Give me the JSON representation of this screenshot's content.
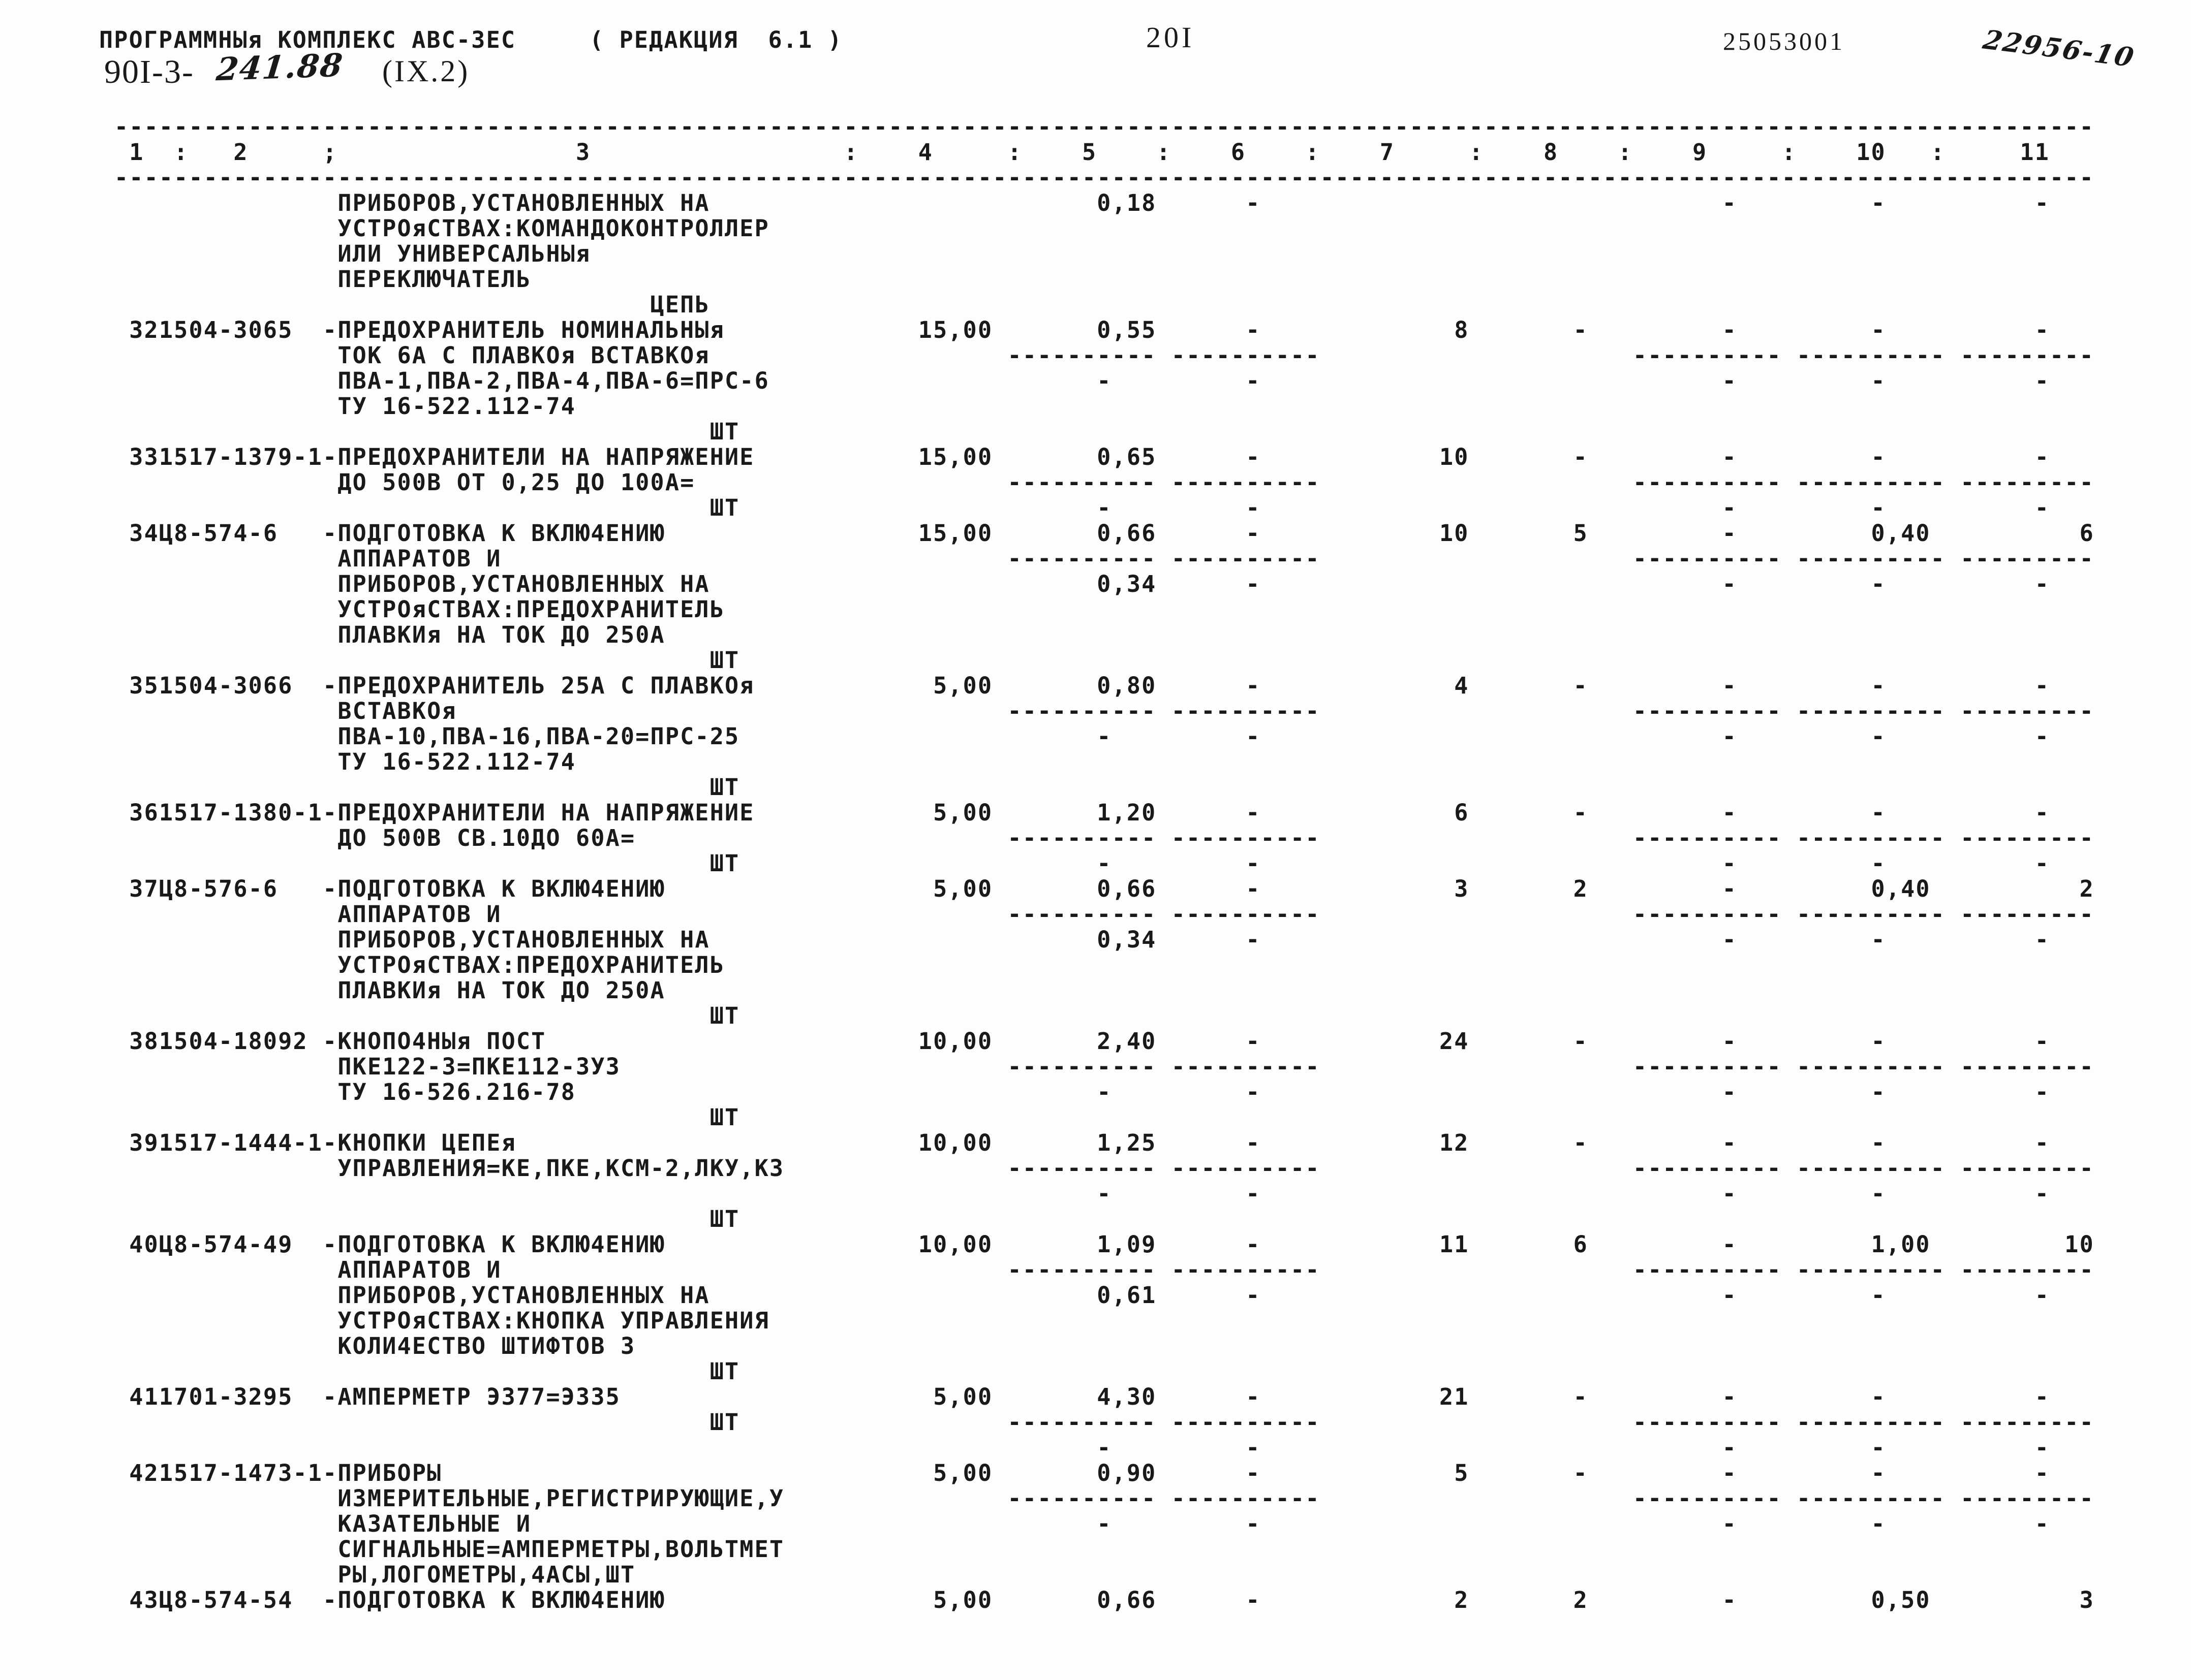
{
  "header": {
    "program_title": "ПРОГРАММНЫя КОМПЛЕКС АВС-3ЕС",
    "edition": "( РЕДАКЦИЯ  6.1 )",
    "page_number": "20I",
    "right_code": "25053001",
    "handwritten_top_right": "22956-10",
    "doc_number_prefix": "90I-3-",
    "doc_number_handwritten": "241.88",
    "doc_section": "(IX.2)"
  },
  "ruler": {
    "labels": [
      "1",
      ":",
      "2",
      ";",
      "3",
      ":",
      "4",
      ":",
      "5",
      ":",
      "6",
      ":",
      "7",
      ":",
      "8",
      ":",
      "9",
      ":",
      "10",
      ":",
      "11"
    ]
  },
  "carryover": {
    "description_lines": [
      "ПРИБОРОВ,УСТАНОВЛЕННЫХ НА",
      "УСТРОяСТВАХ:КОМАНДОКОНТРОЛЛЕР",
      "ИЛИ УНИВЕРСАЛЬНЫя",
      "ПЕРЕКЛЮЧАТЕЛЬ"
    ],
    "unit": "ЦЕПЬ",
    "values": {
      "c5": "0,18",
      "c6": "-",
      "c9": "-",
      "c10": "-",
      "c11": "-"
    }
  },
  "items": [
    {
      "num": "32",
      "code": "1504-3065",
      "desc": [
        "ПРЕДОХРАНИТЕЛЬ НОМИНАЛЬНЫя",
        "ТОК 6А С ПЛАВКОя ВСТАВКОя",
        "ПВА-1,ПВА-2,ПВА-4,ПВА-6=ПРС-6",
        "ТУ 16-522.112-74"
      ],
      "unit": "ШТ",
      "unit_row": 4,
      "has_separators": true,
      "values": {
        "c4": "15,00",
        "c5": "0,55",
        "c6": "-",
        "c7": "8",
        "c8": "-",
        "c9": "-",
        "c10": "-",
        "c11": "-"
      },
      "second": {
        "c5": "-",
        "c6": "-",
        "c9": "-",
        "c10": "-",
        "c11": "-"
      }
    },
    {
      "num": "33",
      "code": "1517-1379-1",
      "desc": [
        "ПРЕДОХРАНИТЕЛИ НА НАПРЯЖЕНИЕ",
        "ДО 500В ОТ 0,25 ДО 100А="
      ],
      "unit": "ШТ",
      "unit_row": 2,
      "has_separators": true,
      "values": {
        "c4": "15,00",
        "c5": "0,65",
        "c6": "-",
        "c7": "10",
        "c8": "-",
        "c9": "-",
        "c10": "-",
        "c11": "-"
      },
      "second": {
        "c5": "-",
        "c6": "-",
        "c9": "-",
        "c10": "-",
        "c11": "-"
      }
    },
    {
      "num": "34",
      "code": "Ц8-574-6",
      "desc": [
        "ПОДГОТОВКА К ВКЛЮ4ЕНИЮ",
        "АППАРАТОВ И",
        "ПРИБОРОВ,УСТАНОВЛЕННЫХ НА",
        "УСТРОяСТВАХ:ПРЕДОХРАНИТЕЛЬ",
        "ПЛАВКИя НА ТОК ДО 250А"
      ],
      "unit": "ШТ",
      "unit_row": 5,
      "has_separators": true,
      "values": {
        "c4": "15,00",
        "c5": "0,66",
        "c6": "-",
        "c7": "10",
        "c8": "5",
        "c9": "-",
        "c10": "0,40",
        "c11": "6"
      },
      "second": {
        "c5": "0,34",
        "c6": "-",
        "c9": "-",
        "c10": "-",
        "c11": "-"
      }
    },
    {
      "num": "35",
      "code": "1504-3066",
      "desc": [
        "ПРЕДОХРАНИТЕЛЬ 25А С ПЛАВКОя",
        "ВСТАВКОя",
        "ПВА-10,ПВА-16,ПВА-20=ПРС-25",
        "ТУ 16-522.112-74"
      ],
      "unit": "ШТ",
      "unit_row": 4,
      "has_separators": true,
      "values": {
        "c4": "5,00",
        "c5": "0,80",
        "c6": "-",
        "c7": "4",
        "c8": "-",
        "c9": "-",
        "c10": "-",
        "c11": "-"
      },
      "second": {
        "c5": "-",
        "c6": "-",
        "c9": "-",
        "c10": "-",
        "c11": "-"
      }
    },
    {
      "num": "36",
      "code": "1517-1380-1",
      "desc": [
        "ПРЕДОХРАНИТЕЛИ НА НАПРЯЖЕНИЕ",
        "ДО 500В СВ.10ДО 60А="
      ],
      "unit": "ШТ",
      "unit_row": 2,
      "has_separators": true,
      "values": {
        "c4": "5,00",
        "c5": "1,20",
        "c6": "-",
        "c7": "6",
        "c8": "-",
        "c9": "-",
        "c10": "-",
        "c11": "-"
      },
      "second": {
        "c5": "-",
        "c6": "-",
        "c9": "-",
        "c10": "-",
        "c11": "-"
      }
    },
    {
      "num": "37",
      "code": "Ц8-576-6",
      "desc": [
        "ПОДГОТОВКА К ВКЛЮ4ЕНИЮ",
        "АППАРАТОВ И",
        "ПРИБОРОВ,УСТАНОВЛЕННЫХ НА",
        "УСТРОяСТВАХ:ПРЕДОХРАНИТЕЛЬ",
        "ПЛАВКИя НА ТОК ДО 250А"
      ],
      "unit": "ШТ",
      "unit_row": 5,
      "has_separators": true,
      "values": {
        "c4": "5,00",
        "c5": "0,66",
        "c6": "-",
        "c7": "3",
        "c8": "2",
        "c9": "-",
        "c10": "0,40",
        "c11": "2"
      },
      "second": {
        "c5": "0,34",
        "c6": "-",
        "c9": "-",
        "c10": "-",
        "c11": "-"
      }
    },
    {
      "num": "38",
      "code": "1504-18092",
      "desc": [
        "КНОПО4НЫя ПОСТ",
        "ПКЕ122-3=ПКЕ112-3У3",
        "ТУ 16-526.216-78"
      ],
      "unit": "ШТ",
      "unit_row": 3,
      "has_separators": true,
      "values": {
        "c4": "10,00",
        "c5": "2,40",
        "c6": "-",
        "c7": "24",
        "c8": "-",
        "c9": "-",
        "c10": "-",
        "c11": "-"
      },
      "second": {
        "c5": "-",
        "c6": "-",
        "c9": "-",
        "c10": "-",
        "c11": "-"
      }
    },
    {
      "num": "39",
      "code": "1517-1444-1",
      "desc": [
        "КНОПКИ ЦЕПЕя",
        "УПРАВЛЕНИЯ=КЕ,ПКЕ,КСМ-2,ЛКУ,КЗ"
      ],
      "unit": "ШТ",
      "unit_row": 3,
      "has_separators": true,
      "values": {
        "c4": "10,00",
        "c5": "1,25",
        "c6": "-",
        "c7": "12",
        "c8": "-",
        "c9": "-",
        "c10": "-",
        "c11": "-"
      },
      "second": {
        "c5": "-",
        "c6": "-",
        "c9": "-",
        "c10": "-",
        "c11": "-"
      }
    },
    {
      "num": "40",
      "code": "Ц8-574-49",
      "desc": [
        "ПОДГОТОВКА К ВКЛЮ4ЕНИЮ",
        "АППАРАТОВ И",
        "ПРИБОРОВ,УСТАНОВЛЕННЫХ НА",
        "УСТРОяСТВАХ:КНОПКА УПРАВЛЕНИЯ",
        "КОЛИ4ЕСТВО ШТИФТОВ 3"
      ],
      "unit": "ШТ",
      "unit_row": 5,
      "has_separators": true,
      "values": {
        "c4": "10,00",
        "c5": "1,09",
        "c6": "-",
        "c7": "11",
        "c8": "6",
        "c9": "-",
        "c10": "1,00",
        "c11": "10"
      },
      "second": {
        "c5": "0,61",
        "c6": "-",
        "c9": "-",
        "c10": "-",
        "c11": "-"
      }
    },
    {
      "num": "41",
      "code": "1701-3295",
      "desc": [
        "АМПЕРМЕТР Э377=Э335"
      ],
      "unit": "ШТ",
      "unit_row": 1,
      "has_separators": true,
      "values": {
        "c4": "5,00",
        "c5": "4,30",
        "c6": "-",
        "c7": "21",
        "c8": "-",
        "c9": "-",
        "c10": "-",
        "c11": "-"
      },
      "second": {
        "c5": "-",
        "c6": "-",
        "c9": "-",
        "c10": "-",
        "c11": "-"
      }
    },
    {
      "num": "42",
      "code": "1517-1473-1",
      "desc": [
        "ПРИБОРЫ",
        "ИЗМЕРИТЕЛЬНЫЕ,РЕГИСТРИРУЮЩИЕ,У",
        "КАЗАТЕЛЬНЫЕ И",
        "СИГНАЛЬНЫЕ=АМПЕРМЕТРЫ,ВОЛЬТМЕТ",
        "РЫ,ЛОГОМЕТРЫ,4АСЫ,ШТ"
      ],
      "unit": "",
      "unit_row": null,
      "has_separators": true,
      "values": {
        "c4": "5,00",
        "c5": "0,90",
        "c6": "-",
        "c7": "5",
        "c8": "-",
        "c9": "-",
        "c10": "-",
        "c11": "-"
      },
      "second": {
        "c5": "-",
        "c6": "-",
        "c9": "-",
        "c10": "-",
        "c11": "-"
      }
    },
    {
      "num": "43",
      "code": "Ц8-574-54",
      "desc": [
        "ПОДГОТОВКА К ВКЛЮ4ЕНИЮ"
      ],
      "unit": "",
      "unit_row": null,
      "has_separators": false,
      "values": {
        "c4": "5,00",
        "c5": "0,66",
        "c6": "-",
        "c7": "2",
        "c8": "2",
        "c9": "-",
        "c10": "0,50",
        "c11": "3"
      },
      "second": null
    }
  ]
}
